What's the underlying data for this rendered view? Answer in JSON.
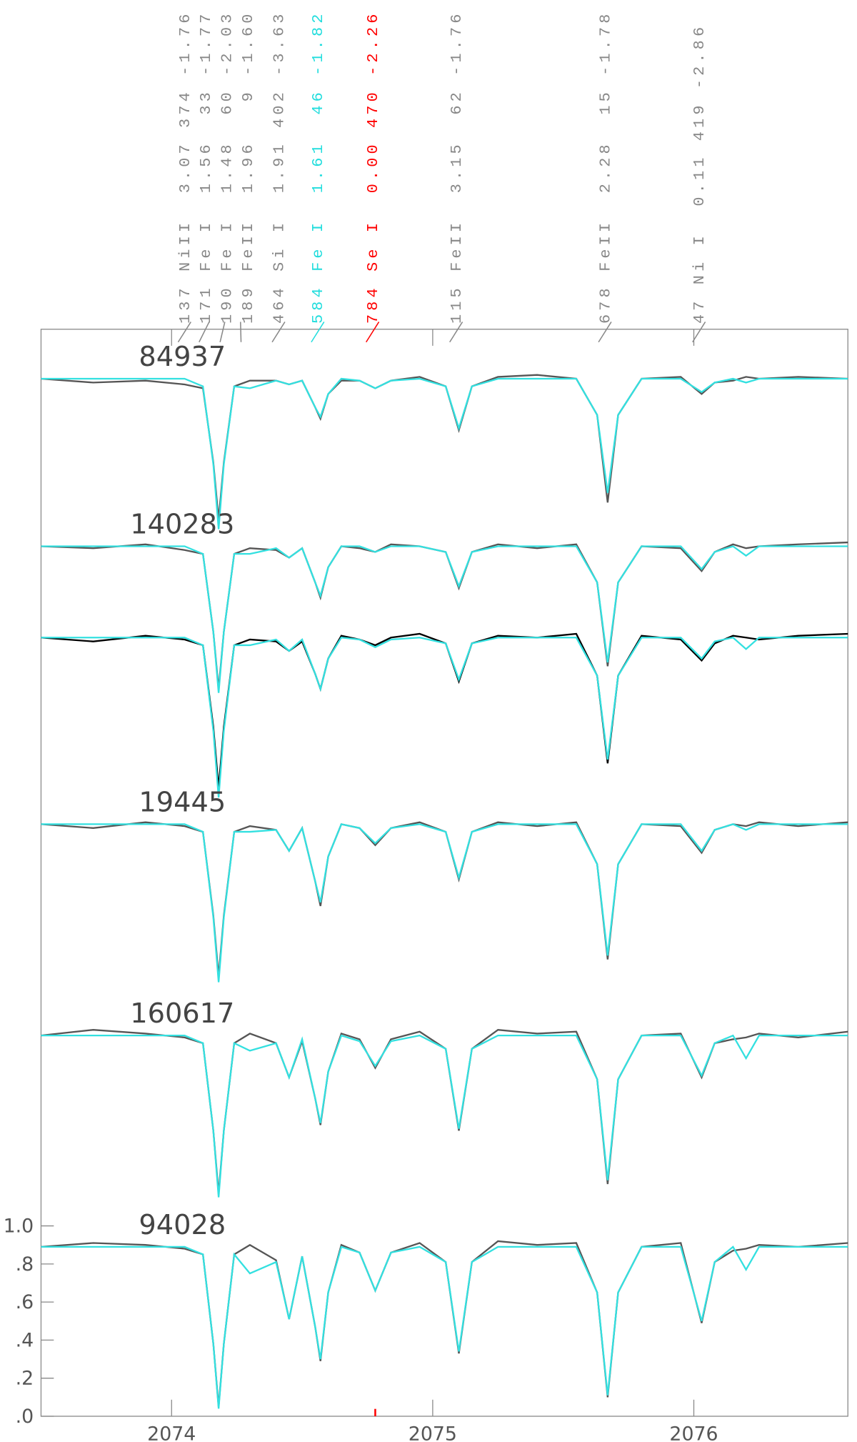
{
  "chart_data": {
    "type": "line",
    "x": [
      2073.5,
      2073.7,
      2073.9,
      2074.05,
      2074.12,
      2074.16,
      2074.18,
      2074.2,
      2074.24,
      2074.3,
      2074.4,
      2074.45,
      2074.5,
      2074.55,
      2074.57,
      2074.6,
      2074.65,
      2074.72,
      2074.78,
      2074.84,
      2074.95,
      2075.05,
      2075.1,
      2075.15,
      2075.25,
      2075.4,
      2075.55,
      2075.63,
      2075.67,
      2075.71,
      2075.8,
      2075.95,
      2076.03,
      2076.08,
      2076.15,
      2076.2,
      2076.25,
      2076.4,
      2076.59
    ],
    "xlim": [
      2073.5,
      2076.59
    ],
    "xticks": [
      2074,
      2075,
      2076
    ],
    "ylim": [
      0,
      5.71
    ],
    "yticks": [
      {
        "value": 0,
        "label": ".0"
      },
      {
        "value": 0.2,
        "label": ".2"
      },
      {
        "value": 0.4,
        "label": ".4"
      },
      {
        "value": 0.6,
        "label": ".6"
      },
      {
        "value": 0.8,
        "label": ".8"
      },
      {
        "value": 1.0,
        "label": "1.0"
      }
    ],
    "series": [
      {
        "name": "84937",
        "color": "#555555",
        "values": [
          5.45,
          5.43,
          5.44,
          5.42,
          5.4,
          5.01,
          4.71,
          5.01,
          5.41,
          5.44,
          5.44,
          5.42,
          5.44,
          5.3,
          5.24,
          5.37,
          5.44,
          5.44,
          5.4,
          5.44,
          5.46,
          5.41,
          5.18,
          5.41,
          5.46,
          5.47,
          5.45,
          5.26,
          4.8,
          5.26,
          5.45,
          5.46,
          5.37,
          5.43,
          5.44,
          5.46,
          5.45,
          5.46,
          5.45
        ]
      },
      {
        "color": "#33e0e0",
        "values": [
          5.45,
          5.45,
          5.45,
          5.45,
          5.41,
          5.0,
          4.66,
          5.0,
          5.41,
          5.4,
          5.44,
          5.42,
          5.44,
          5.3,
          5.25,
          5.37,
          5.45,
          5.44,
          5.4,
          5.44,
          5.45,
          5.41,
          5.19,
          5.41,
          5.45,
          5.45,
          5.45,
          5.26,
          4.85,
          5.26,
          5.45,
          5.45,
          5.38,
          5.43,
          5.45,
          5.43,
          5.45,
          5.45,
          5.45
        ]
      },
      {
        "name": "140283",
        "color": "#555555",
        "values": [
          4.57,
          4.56,
          4.58,
          4.55,
          4.53,
          4.12,
          3.82,
          4.12,
          4.53,
          4.56,
          4.55,
          4.51,
          4.56,
          4.38,
          4.3,
          4.46,
          4.57,
          4.56,
          4.54,
          4.58,
          4.57,
          4.54,
          4.35,
          4.54,
          4.58,
          4.56,
          4.58,
          4.38,
          3.94,
          4.38,
          4.57,
          4.56,
          4.44,
          4.54,
          4.58,
          4.56,
          4.57,
          4.58,
          4.59
        ]
      },
      {
        "color": "#33e0e0",
        "values": [
          4.57,
          4.57,
          4.57,
          4.57,
          4.53,
          4.12,
          3.8,
          4.12,
          4.53,
          4.53,
          4.56,
          4.51,
          4.56,
          4.38,
          4.31,
          4.46,
          4.57,
          4.57,
          4.54,
          4.57,
          4.57,
          4.54,
          4.36,
          4.54,
          4.57,
          4.57,
          4.57,
          4.38,
          3.96,
          4.38,
          4.57,
          4.57,
          4.45,
          4.54,
          4.57,
          4.52,
          4.57,
          4.57,
          4.57
        ]
      },
      {
        "color": "#000000",
        "values": [
          4.09,
          4.07,
          4.1,
          4.08,
          4.05,
          3.62,
          3.3,
          3.62,
          4.05,
          4.08,
          4.07,
          4.02,
          4.07,
          3.9,
          3.82,
          3.98,
          4.1,
          4.08,
          4.05,
          4.09,
          4.11,
          4.06,
          3.86,
          4.06,
          4.1,
          4.09,
          4.11,
          3.89,
          3.43,
          3.89,
          4.1,
          4.08,
          3.97,
          4.06,
          4.1,
          4.09,
          4.08,
          4.1,
          4.11
        ]
      },
      {
        "color": "#33e0e0",
        "values": [
          4.09,
          4.09,
          4.09,
          4.09,
          4.05,
          3.6,
          3.25,
          3.6,
          4.05,
          4.05,
          4.08,
          4.02,
          4.08,
          3.9,
          3.82,
          3.98,
          4.09,
          4.08,
          4.04,
          4.08,
          4.09,
          4.06,
          3.87,
          4.06,
          4.09,
          4.09,
          4.09,
          3.89,
          3.45,
          3.89,
          4.09,
          4.09,
          3.98,
          4.07,
          4.09,
          4.03,
          4.09,
          4.09,
          4.09
        ]
      },
      {
        "name": "19445",
        "color": "#555555",
        "values": [
          3.11,
          3.09,
          3.12,
          3.1,
          3.07,
          2.63,
          2.31,
          2.63,
          3.07,
          3.1,
          3.08,
          2.97,
          3.09,
          2.81,
          2.68,
          2.94,
          3.11,
          3.09,
          3.0,
          3.09,
          3.12,
          3.07,
          2.82,
          3.07,
          3.12,
          3.1,
          3.12,
          2.9,
          2.4,
          2.9,
          3.11,
          3.1,
          2.96,
          3.08,
          3.11,
          3.1,
          3.12,
          3.1,
          3.12
        ]
      },
      {
        "color": "#33e0e0",
        "values": [
          3.11,
          3.11,
          3.11,
          3.11,
          3.07,
          2.62,
          2.28,
          2.62,
          3.07,
          3.07,
          3.08,
          2.97,
          3.09,
          2.81,
          2.7,
          2.94,
          3.11,
          3.09,
          3.01,
          3.09,
          3.11,
          3.07,
          2.83,
          3.07,
          3.11,
          3.11,
          3.11,
          2.9,
          2.42,
          2.9,
          3.11,
          3.11,
          2.97,
          3.08,
          3.11,
          3.08,
          3.11,
          3.11,
          3.11
        ]
      },
      {
        "name": "160617",
        "color": "#555555",
        "values": [
          2.0,
          2.03,
          2.01,
          1.99,
          1.96,
          1.5,
          1.17,
          1.5,
          1.96,
          2.01,
          1.96,
          1.78,
          1.97,
          1.67,
          1.53,
          1.81,
          2.01,
          1.98,
          1.83,
          1.98,
          2.02,
          1.93,
          1.5,
          1.93,
          2.03,
          2.01,
          2.02,
          1.77,
          1.22,
          1.77,
          2.0,
          2.01,
          1.78,
          1.96,
          1.98,
          1.99,
          2.01,
          1.99,
          2.02
        ]
      },
      {
        "color": "#33e0e0",
        "values": [
          2.0,
          2.0,
          2.0,
          2.0,
          1.96,
          1.5,
          1.15,
          1.5,
          1.96,
          1.92,
          1.96,
          1.78,
          1.98,
          1.67,
          1.54,
          1.81,
          2.0,
          1.97,
          1.84,
          1.97,
          2.0,
          1.93,
          1.51,
          1.93,
          2.0,
          2.0,
          2.0,
          1.77,
          1.24,
          1.77,
          2.0,
          2.0,
          1.79,
          1.96,
          2.0,
          1.88,
          2.0,
          2.0,
          2.0
        ]
      },
      {
        "name": "94028",
        "color": "#555555",
        "values": [
          0.89,
          0.91,
          0.9,
          0.88,
          0.85,
          0.38,
          0.05,
          0.38,
          0.85,
          0.9,
          0.82,
          0.51,
          0.84,
          0.47,
          0.29,
          0.65,
          0.9,
          0.86,
          0.66,
          0.86,
          0.91,
          0.81,
          0.33,
          0.81,
          0.92,
          0.9,
          0.91,
          0.65,
          0.1,
          0.65,
          0.89,
          0.91,
          0.49,
          0.81,
          0.87,
          0.88,
          0.9,
          0.89,
          0.91
        ]
      },
      {
        "color": "#33e0e0",
        "values": [
          0.89,
          0.89,
          0.89,
          0.89,
          0.85,
          0.38,
          0.04,
          0.38,
          0.85,
          0.75,
          0.81,
          0.51,
          0.84,
          0.47,
          0.3,
          0.65,
          0.89,
          0.86,
          0.66,
          0.86,
          0.89,
          0.81,
          0.34,
          0.81,
          0.89,
          0.89,
          0.89,
          0.65,
          0.11,
          0.65,
          0.89,
          0.89,
          0.5,
          0.81,
          0.89,
          0.77,
          0.89,
          0.89,
          0.89
        ]
      }
    ],
    "line_ids": [
      {
        "label": "137 NiII  3.07 374 -1.76",
        "wavelength": 2074.06,
        "color": "#888888"
      },
      {
        "label": "171 Fe I  1.56  33 -1.77",
        "wavelength": 2074.13,
        "color": "#888888"
      },
      {
        "label": "190 Fe I  1.48  60 -2.03",
        "wavelength": 2074.19,
        "color": "#888888"
      },
      {
        "label": "189 FeII  1.96   9 -1.60",
        "wavelength": 2074.25,
        "color": "#888888"
      },
      {
        "label": "464 Si I  1.91 402 -3.63",
        "wavelength": 2074.42,
        "color": "#888888"
      },
      {
        "label": "584 Fe I  1.61  46 -1.82",
        "wavelength": 2074.57,
        "color": "#22dddd"
      },
      {
        "label": "784 Se I  0.00 470 -2.26",
        "wavelength": 2074.78,
        "color": "#ff0000"
      },
      {
        "label": "115 FeII  3.15  62 -1.76",
        "wavelength": 2075.1,
        "color": "#888888"
      },
      {
        "label": "678 FeII  2.28  15 -1.78",
        "wavelength": 2075.67,
        "color": "#888888"
      },
      {
        "label": "47 Ni I  0.11 419 -2.86",
        "wavelength": 2076.03,
        "color": "#888888"
      }
    ]
  }
}
